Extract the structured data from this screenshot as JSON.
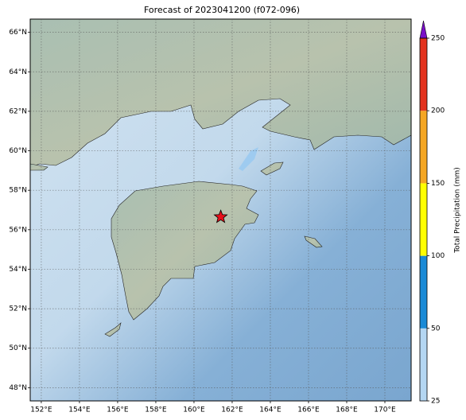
{
  "title": "Forecast of 2023041200 (f072-096)",
  "map": {
    "lonlim": [
      151.42,
      171.375
    ],
    "latlim": [
      47.33,
      66.67
    ],
    "lon_ticks": [
      {
        "value": 152,
        "label": "152°E"
      },
      {
        "value": 154,
        "label": "154°E"
      },
      {
        "value": 156,
        "label": "156°E"
      },
      {
        "value": 158,
        "label": "158°E"
      },
      {
        "value": 160,
        "label": "160°E"
      },
      {
        "value": 162,
        "label": "162°E"
      },
      {
        "value": 164,
        "label": "164°E"
      },
      {
        "value": 166,
        "label": "166°E"
      },
      {
        "value": 168,
        "label": "168°E"
      },
      {
        "value": 170,
        "label": "170°E"
      }
    ],
    "lat_ticks": [
      {
        "value": 48,
        "label": "48°N"
      },
      {
        "value": 50,
        "label": "50°N"
      },
      {
        "value": 52,
        "label": "52°N"
      },
      {
        "value": 54,
        "label": "54°N"
      },
      {
        "value": 56,
        "label": "56°N"
      },
      {
        "value": 58,
        "label": "58°N"
      },
      {
        "value": 60,
        "label": "60°N"
      },
      {
        "value": 62,
        "label": "62°N"
      },
      {
        "value": 64,
        "label": "64°N"
      },
      {
        "value": 66,
        "label": "66°N"
      }
    ],
    "marker": {
      "lon": 161.4,
      "lat": 56.65,
      "color": "#e8101a"
    }
  },
  "colorbar": {
    "label": "Total Precipitation (mm)",
    "ticks": [
      25,
      50,
      100,
      150,
      200,
      250
    ],
    "colors": [
      "#b4d6f2",
      "#1a8ad6",
      "#ffff00",
      "#f5a623",
      "#e3321e"
    ],
    "extend_color": "#7a10c8"
  }
}
